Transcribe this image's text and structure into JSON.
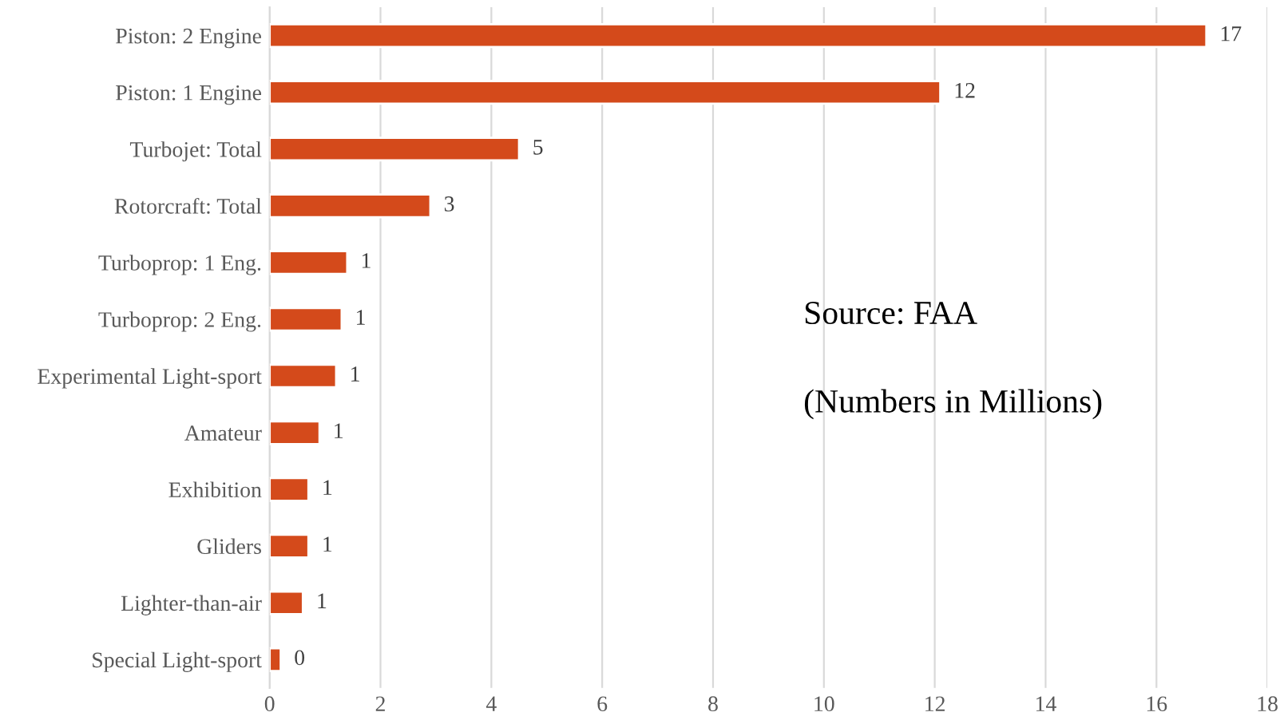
{
  "chart_data": {
    "type": "bar",
    "orientation": "horizontal",
    "categories": [
      "Piston: 2 Engine",
      "Piston: 1 Engine",
      "Turbojet: Total",
      "Rotorcraft: Total",
      "Turboprop: 1 Eng.",
      "Turboprop: 2 Eng.",
      "Experimental Light-sport",
      "Amateur",
      "Exhibition",
      "Gliders",
      "Lighter-than-air",
      "Special Light-sport"
    ],
    "values": [
      16.9,
      12.1,
      4.5,
      2.9,
      1.4,
      1.3,
      1.2,
      0.9,
      0.7,
      0.7,
      0.6,
      0.2
    ],
    "value_labels": [
      "17",
      "12",
      "5",
      "3",
      "1",
      "1",
      "1",
      "1",
      "1",
      "1",
      "1",
      "0"
    ],
    "color": "#d44a1b",
    "xlim": [
      0,
      18
    ],
    "xticks": [
      0,
      2,
      4,
      6,
      8,
      10,
      12,
      14,
      16,
      18
    ],
    "grid": "x",
    "annotations": [
      "Source: FAA",
      "(Numbers in Millions)"
    ]
  }
}
